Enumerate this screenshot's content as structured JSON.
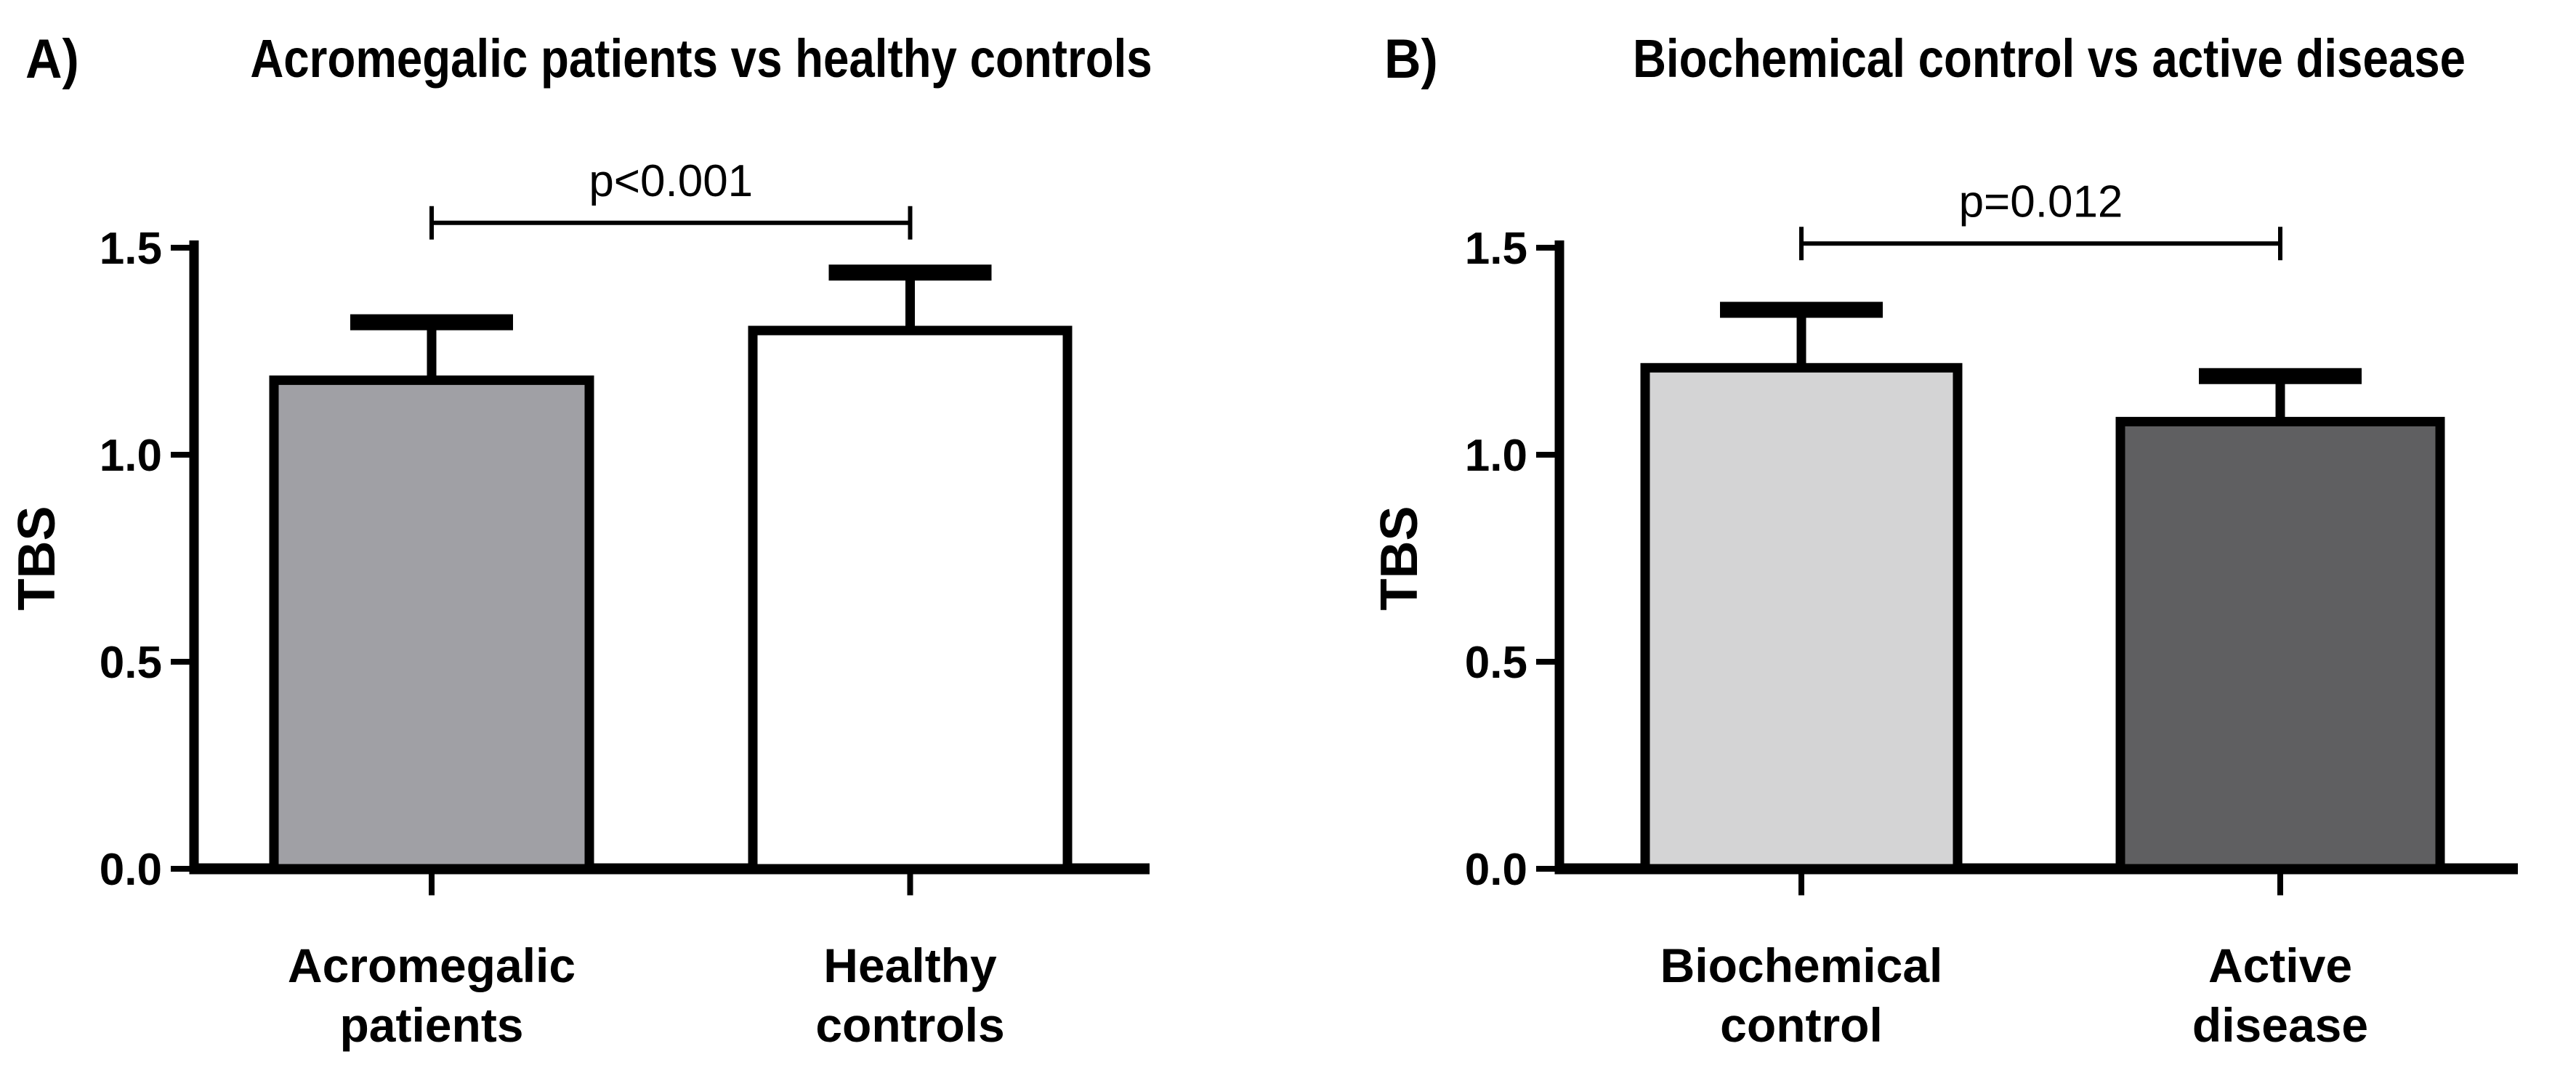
{
  "figure": {
    "background": "#ffffff",
    "axis_color": "#000000",
    "text_color": "#000000"
  },
  "chart_data": [
    {
      "type": "bar",
      "panel_letter": "A)",
      "title": "Acromegalic patients vs healthy controls",
      "xlabel": "",
      "ylabel": "TBS",
      "ylim": [
        0,
        1.5
      ],
      "ytick_labels": [
        "0.0",
        "0.5",
        "1.0",
        "1.5"
      ],
      "grid": false,
      "legend": null,
      "categories": [
        "Acromegalic patients",
        "Healthy controls"
      ],
      "category_lines": [
        [
          "Acromegalic",
          "patients"
        ],
        [
          "Healthy",
          "controls"
        ]
      ],
      "values": [
        1.18,
        1.3
      ],
      "error_plus": [
        0.14,
        0.14
      ],
      "bar_fill_colors": [
        "#a0a0a5",
        "#ffffff"
      ],
      "bar_edge_color": "#000000",
      "significance": {
        "label": "p<0.001",
        "level": 1.56
      }
    },
    {
      "type": "bar",
      "panel_letter": "B)",
      "title": "Biochemical control vs active disease",
      "xlabel": "",
      "ylabel": "TBS",
      "ylim": [
        0,
        1.5
      ],
      "ytick_labels": [
        "0.0",
        "0.5",
        "1.0",
        "1.5"
      ],
      "grid": false,
      "legend": null,
      "categories": [
        "Biochemical control",
        "Active disease"
      ],
      "category_lines": [
        [
          "Biochemical",
          "control"
        ],
        [
          "Active",
          "disease"
        ]
      ],
      "values": [
        1.21,
        1.08
      ],
      "error_plus": [
        0.14,
        0.11
      ],
      "bar_fill_colors": [
        "#d4d4d5",
        "#5f5f61"
      ],
      "bar_edge_color": "#000000",
      "significance": {
        "label": "p=0.012",
        "level": 1.51
      }
    }
  ]
}
